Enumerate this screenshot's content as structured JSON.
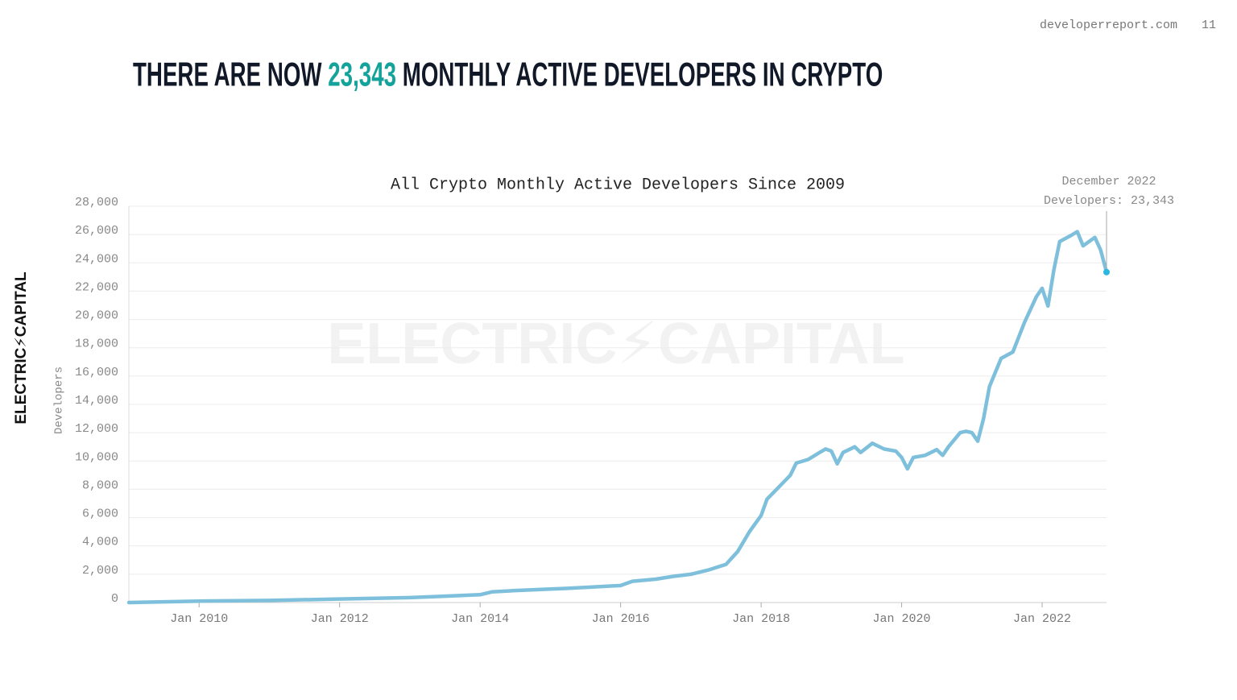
{
  "page": {
    "site": "developerreport.com",
    "page_number": "11",
    "logo": "ELECTRIC⚡CAPITAL",
    "headline": {
      "before": "THERE ARE NOW",
      "highlight": "23,343",
      "after": "MONTHLY ACTIVE DEVELOPERS IN CRYPTO"
    }
  },
  "chart_data": {
    "type": "line",
    "title": "All Crypto Monthly Active Developers Since 2009",
    "y_label": "Developers",
    "watermark": "ELECTRIC⚡CAPITAL",
    "grid": true,
    "x": [
      "2009-01",
      "2010-01",
      "2011-01",
      "2012-01",
      "2013-01",
      "2013-07",
      "2014-01",
      "2014-03",
      "2014-07",
      "2015-01",
      "2015-04",
      "2016-01",
      "2016-03",
      "2016-07",
      "2016-10",
      "2017-01",
      "2017-04",
      "2017-07",
      "2017-09",
      "2017-11",
      "2018-01",
      "2018-02",
      "2018-04",
      "2018-06",
      "2018-07",
      "2018-09",
      "2018-11",
      "2018-12",
      "2019-01",
      "2019-02",
      "2019-03",
      "2019-05",
      "2019-06",
      "2019-08",
      "2019-10",
      "2019-12",
      "2020-01",
      "2020-02",
      "2020-03",
      "2020-05",
      "2020-07",
      "2020-08",
      "2020-09",
      "2020-11",
      "2020-12",
      "2021-01",
      "2021-02",
      "2021-03",
      "2021-04",
      "2021-06",
      "2021-08",
      "2021-10",
      "2021-12",
      "2022-01",
      "2022-02",
      "2022-03",
      "2022-04",
      "2022-06",
      "2022-07",
      "2022-08",
      "2022-10",
      "2022-11",
      "2022-12"
    ],
    "series": [
      {
        "name": "Developers",
        "color": "#7ec0dc",
        "values": [
          0,
          100,
          150,
          250,
          350,
          450,
          550,
          750,
          850,
          950,
          1000,
          1200,
          1500,
          1650,
          1850,
          2000,
          2300,
          2700,
          3600,
          5000,
          6150,
          7300,
          8150,
          9000,
          9850,
          10100,
          10600,
          10850,
          10700,
          9800,
          10600,
          11000,
          10600,
          11250,
          10850,
          10700,
          10250,
          9450,
          10250,
          10400,
          10800,
          10400,
          11000,
          12000,
          12100,
          12000,
          11400,
          13000,
          15250,
          17250,
          17700,
          19800,
          21600,
          22200,
          20950,
          23500,
          25500,
          25950,
          26200,
          25200,
          25800,
          24900,
          23343
        ]
      }
    ],
    "annotation": {
      "x": "2022-12",
      "title": "December 2022",
      "label": "Developers: 23,343",
      "value": 23343
    },
    "xlim": [
      "2009-01",
      "2022-12"
    ],
    "xticks": [
      {
        "value": "2010-01",
        "label": "Jan 2010"
      },
      {
        "value": "2012-01",
        "label": "Jan 2012"
      },
      {
        "value": "2014-01",
        "label": "Jan 2014"
      },
      {
        "value": "2016-01",
        "label": "Jan 2016"
      },
      {
        "value": "2018-01",
        "label": "Jan 2018"
      },
      {
        "value": "2020-01",
        "label": "Jan 2020"
      },
      {
        "value": "2022-01",
        "label": "Jan 2022"
      }
    ],
    "ylim": [
      0,
      28000
    ],
    "yticks": [
      0,
      {
        "value": 2000,
        "label": "2,000"
      },
      {
        "value": 4000,
        "label": "4,000"
      },
      {
        "value": 6000,
        "label": "6,000"
      },
      {
        "value": 8000,
        "label": "8,000"
      },
      {
        "value": 10000,
        "label": "10,000"
      },
      {
        "value": 12000,
        "label": "12,000"
      },
      {
        "value": 14000,
        "label": "14,000"
      },
      {
        "value": 16000,
        "label": "16,000"
      },
      {
        "value": 18000,
        "label": "18,000"
      },
      {
        "value": 20000,
        "label": "20,000"
      },
      {
        "value": 22000,
        "label": "22,000"
      },
      {
        "value": 24000,
        "label": "24,000"
      },
      {
        "value": 26000,
        "label": "26,000"
      },
      {
        "value": 28000,
        "label": "28,000"
      }
    ]
  }
}
